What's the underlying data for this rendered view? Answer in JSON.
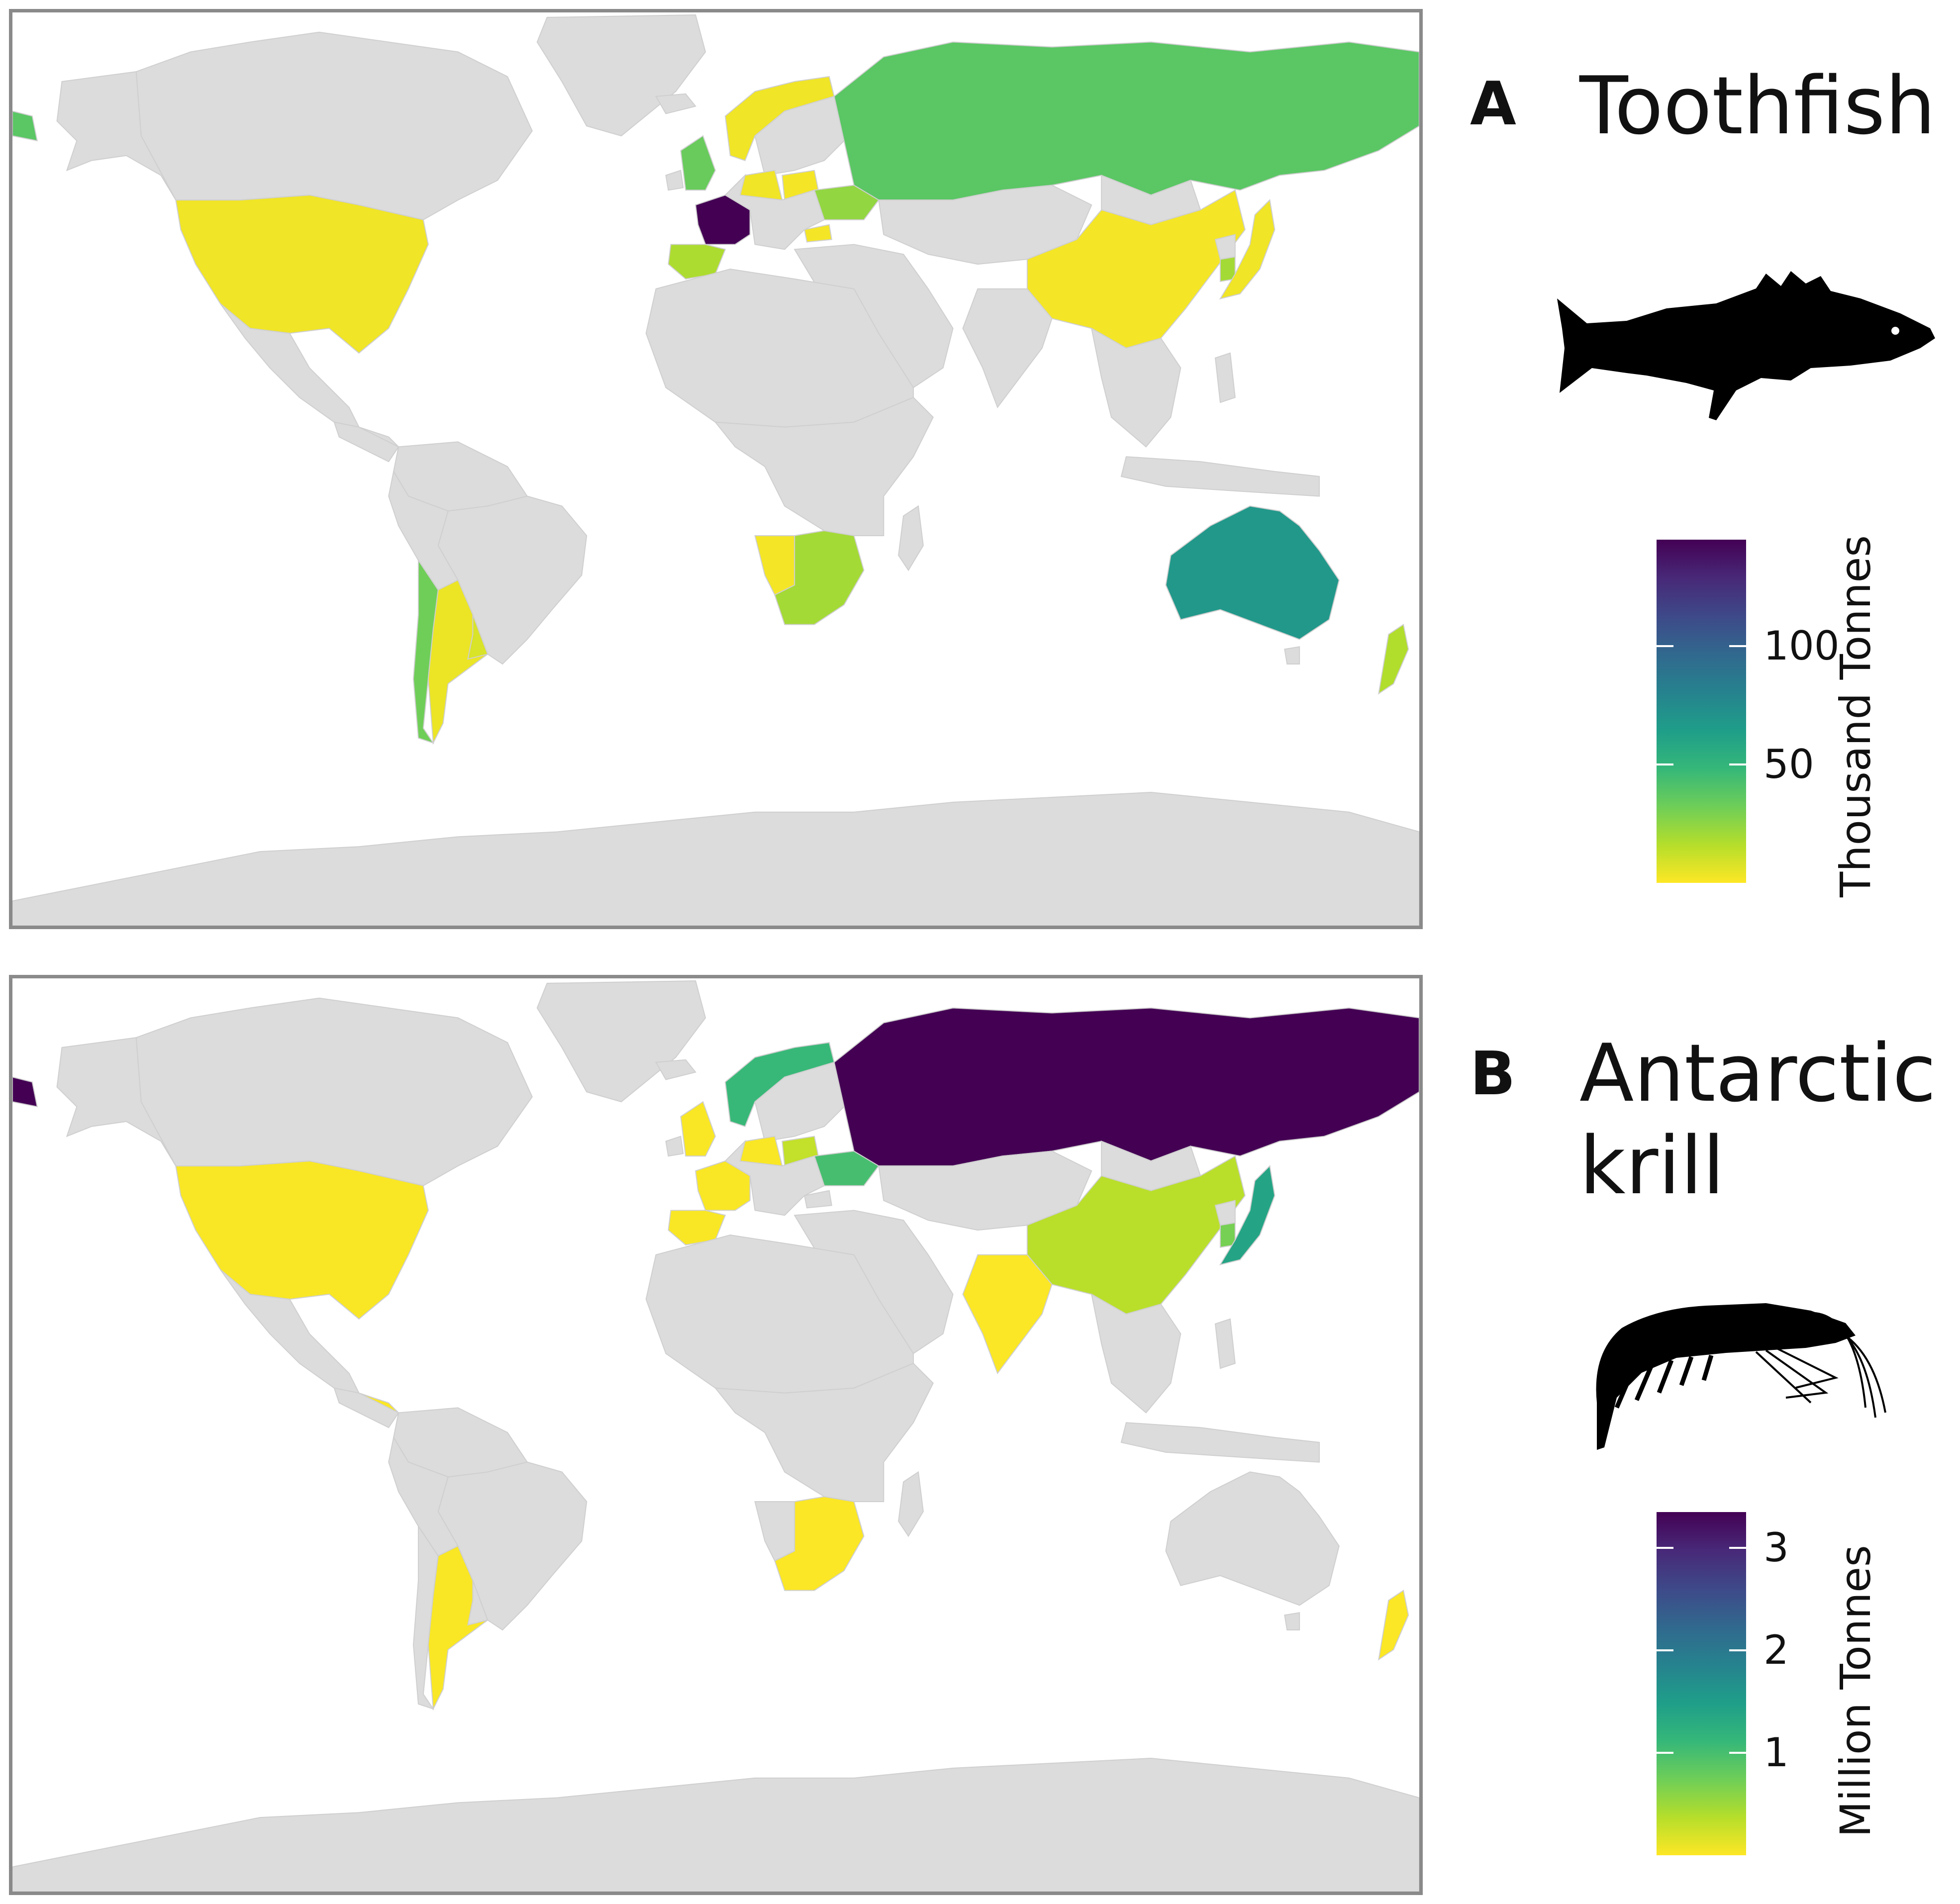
{
  "colors": {
    "no_data_land": "#dcdcdc",
    "ocean": "#ffffff",
    "panel_border": "#8a8a8a",
    "viridis": [
      "#fde725",
      "#b5de2b",
      "#6ece58",
      "#35b779",
      "#1f9e89",
      "#26828e",
      "#31688e",
      "#3e4989",
      "#482878",
      "#440154"
    ]
  },
  "panels": [
    {
      "letter": "A",
      "title": "Toothfish",
      "silhouette": "toothfish-silhouette",
      "legend": {
        "title": "Thousand Tonnes",
        "min": 0,
        "max": 145,
        "ticks": [
          {
            "label": "100",
            "value": 100
          },
          {
            "label": "50",
            "value": 50
          }
        ]
      },
      "countries": [
        {
          "name": "France",
          "value": 145
        },
        {
          "name": "Australia",
          "value": 68
        },
        {
          "name": "Russia",
          "value": 38
        },
        {
          "name": "United Kingdom",
          "value": 34
        },
        {
          "name": "Chile",
          "value": 32
        },
        {
          "name": "Ukraine",
          "value": 24
        },
        {
          "name": "South Africa",
          "value": 20
        },
        {
          "name": "Spain",
          "value": 18
        },
        {
          "name": "New Zealand",
          "value": 17
        },
        {
          "name": "South Korea",
          "value": 20
        },
        {
          "name": "United States",
          "value": 3
        },
        {
          "name": "China",
          "value": 2
        },
        {
          "name": "Japan",
          "value": 3
        },
        {
          "name": "Argentina",
          "value": 4
        },
        {
          "name": "Uruguay",
          "value": 8
        },
        {
          "name": "Namibia",
          "value": 2
        },
        {
          "name": "Norway",
          "value": 3
        },
        {
          "name": "Poland",
          "value": 2
        },
        {
          "name": "Germany",
          "value": 3
        },
        {
          "name": "Bulgaria",
          "value": 2
        }
      ]
    },
    {
      "letter": "B",
      "title": "Antarctic\nkrill",
      "silhouette": "krill-silhouette",
      "legend": {
        "title": "Million Tonnes",
        "min": 0,
        "max": 3.35,
        "ticks": [
          {
            "label": "3",
            "value": 3
          },
          {
            "label": "2",
            "value": 2
          },
          {
            "label": "1",
            "value": 1
          }
        ]
      },
      "countries": [
        {
          "name": "Russia",
          "value": 3.35
        },
        {
          "name": "Norway",
          "value": 1.1
        },
        {
          "name": "Ukraine",
          "value": 1.0
        },
        {
          "name": "Japan",
          "value": 1.4
        },
        {
          "name": "South Korea",
          "value": 0.7
        },
        {
          "name": "China",
          "value": 0.35
        },
        {
          "name": "Poland",
          "value": 0.3
        },
        {
          "name": "United States",
          "value": 0.02
        },
        {
          "name": "India",
          "value": 0.01
        },
        {
          "name": "Argentina",
          "value": 0.02
        },
        {
          "name": "South Africa",
          "value": 0.01
        },
        {
          "name": "New Zealand",
          "value": 0.01
        },
        {
          "name": "France",
          "value": 0.02
        },
        {
          "name": "Spain",
          "value": 0.02
        },
        {
          "name": "United Kingdom",
          "value": 0.02
        },
        {
          "name": "Germany",
          "value": 0.02
        },
        {
          "name": "Panama",
          "value": 0.01
        }
      ]
    }
  ]
}
